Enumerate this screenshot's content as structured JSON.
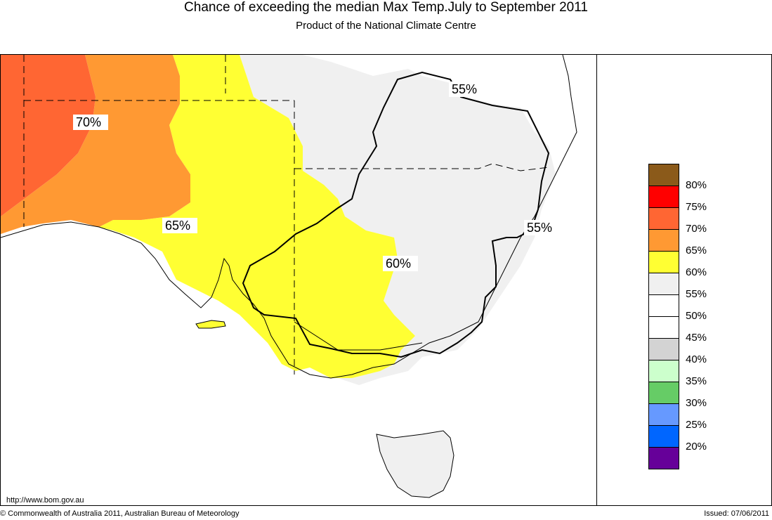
{
  "header": {
    "title": "Chance of exceeding the median Max Temp.July to September 2011",
    "subtitle": "Product of the National Climate Centre"
  },
  "map": {
    "url_label": "http://www.bom.gov.au",
    "contour_labels": [
      "70%",
      "65%",
      "60%",
      "55%",
      "55%"
    ]
  },
  "legend": {
    "labels": [
      "80%",
      "75%",
      "70%",
      "65%",
      "60%",
      "55%",
      "50%",
      "45%",
      "40%",
      "35%",
      "30%",
      "25%",
      "20%"
    ],
    "swatches": [
      {
        "color": "#8b5a1a"
      },
      {
        "color": "#ff0000"
      },
      {
        "color": "#ff6633"
      },
      {
        "color": "#ff9933"
      },
      {
        "color": "#ffff33"
      },
      {
        "color": "#f0f0f0"
      },
      {
        "color": "#ffffff"
      },
      {
        "color": "#ffffff"
      },
      {
        "color": "#d3d3d3"
      },
      {
        "color": "#ccffcc"
      },
      {
        "color": "#66cc66"
      },
      {
        "color": "#6699ff"
      },
      {
        "color": "#0066ff"
      },
      {
        "color": "#660099"
      }
    ]
  },
  "footer": {
    "copyright": "© Commonwealth of Australia 2011, Australian Bureau of Meteorology",
    "issued": "Issued: 07/06/2011"
  }
}
